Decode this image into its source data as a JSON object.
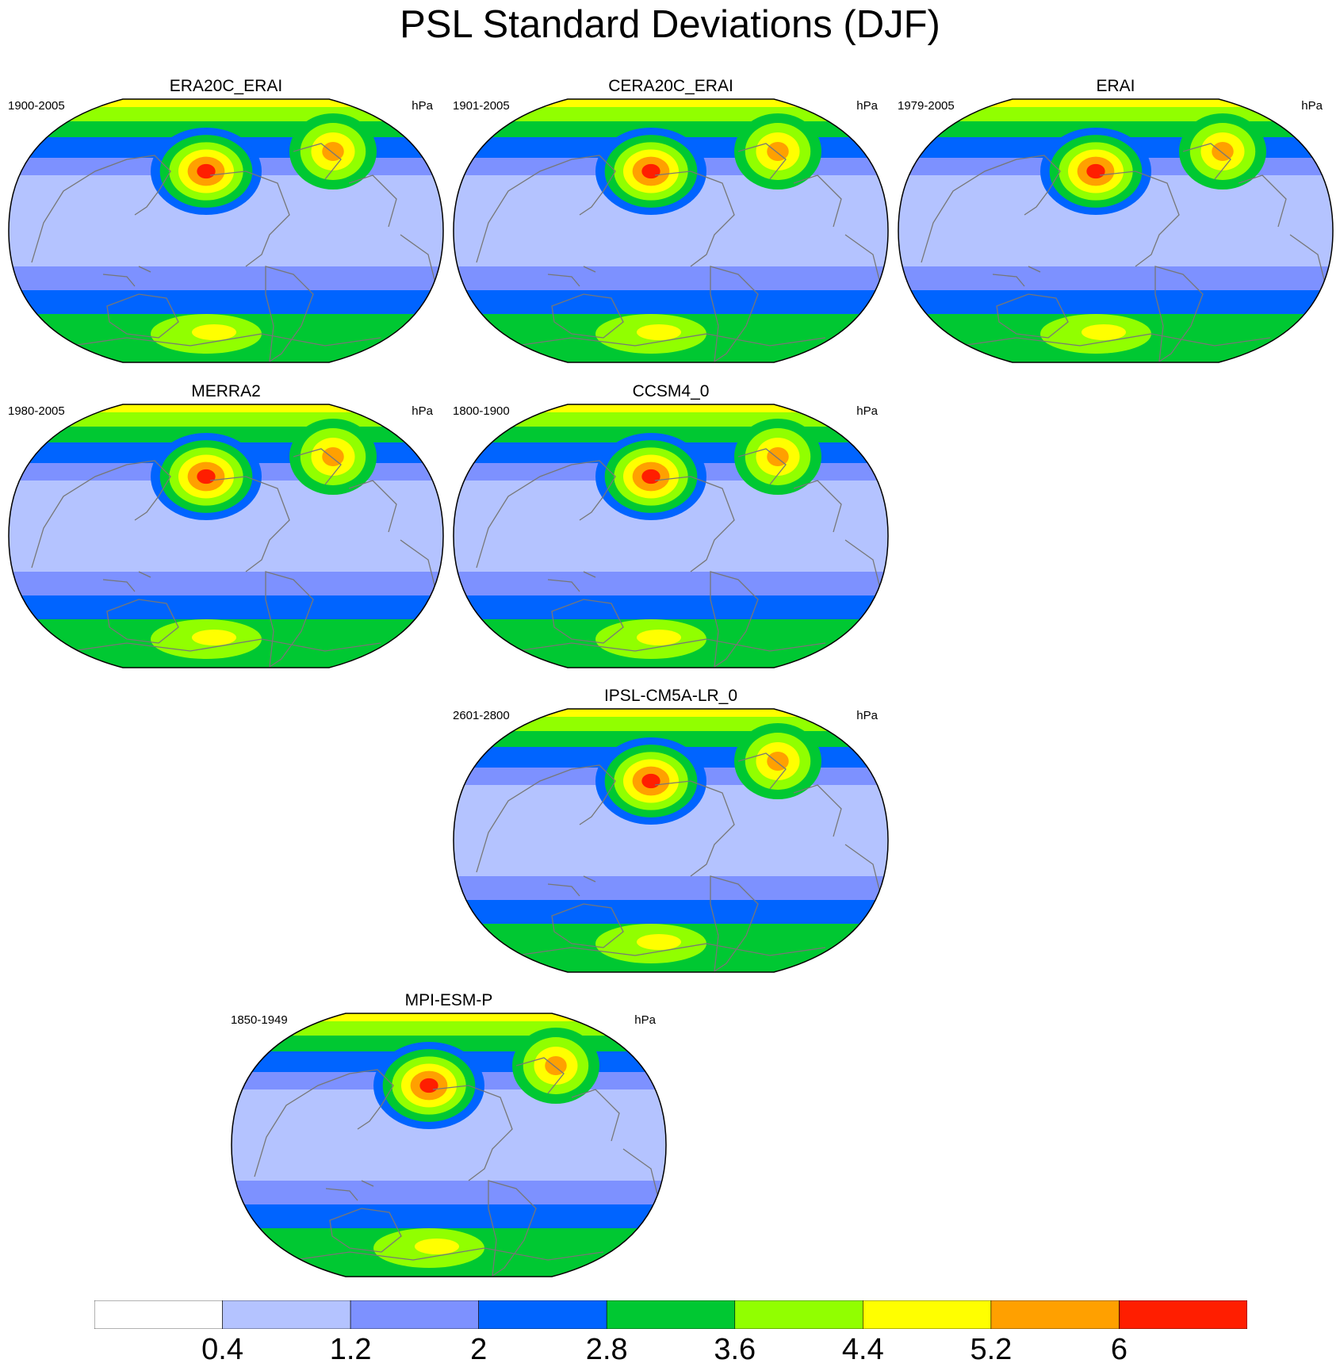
{
  "title": "PSL Standard Deviations (DJF)",
  "units": "hPa",
  "panels": [
    {
      "id": "era20c-erai",
      "title": "ERA20C_ERAI",
      "period": "1900-2005"
    },
    {
      "id": "cera20c-erai",
      "title": "CERA20C_ERAI",
      "period": "1901-2005"
    },
    {
      "id": "erai",
      "title": "ERAI",
      "period": "1979-2005"
    },
    {
      "id": "merra2",
      "title": "MERRA2",
      "period": "1980-2005"
    },
    {
      "id": "ccsm4-0",
      "title": "CCSM4_0",
      "period": "1800-1900"
    },
    {
      "id": "ipsl-cm5a-lr-0",
      "title": "IPSL-CM5A-LR_0",
      "period": "2601-2800"
    },
    {
      "id": "mpi-esm-p",
      "title": "MPI-ESM-P",
      "period": "1850-1949"
    }
  ],
  "colorbar": {
    "tick_labels": [
      "0.4",
      "1.2",
      "2",
      "2.8",
      "3.6",
      "4.4",
      "5.2",
      "6"
    ],
    "colors": [
      "#ffffff",
      "#b4c3ff",
      "#7d91ff",
      "#0064ff",
      "#00c832",
      "#91ff00",
      "#ffff00",
      "#ffa000",
      "#ff1e00"
    ]
  },
  "colors": {
    "coastline": "#777777",
    "map_border": "#000000"
  }
}
